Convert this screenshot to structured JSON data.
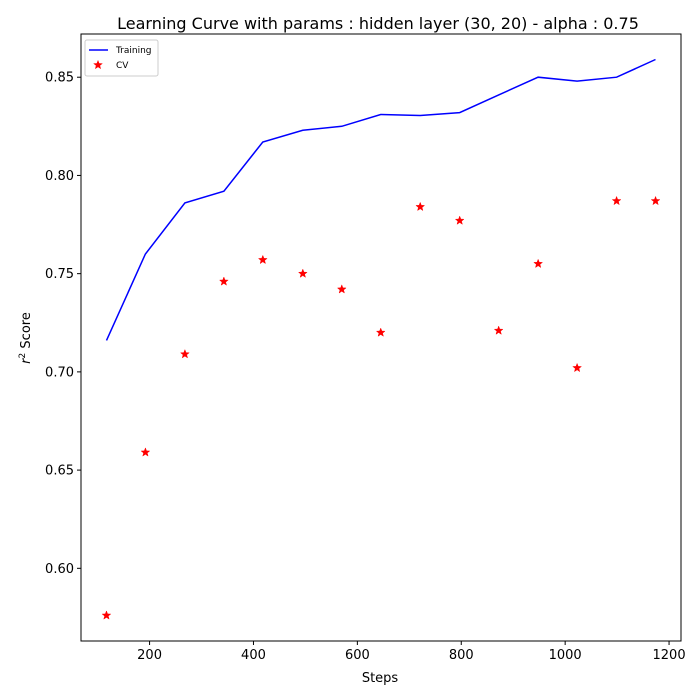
{
  "chart_data": {
    "type": "line",
    "title": "Learning Curve with params : hidden layer (30, 20) - alpha : 0.75",
    "xlabel": "Steps",
    "ylabel_prefix": "r",
    "ylabel_sup": "2",
    "ylabel_suffix": " Score",
    "xlim": [
      68,
      1223
    ],
    "ylim": [
      0.563,
      0.872
    ],
    "xticks": [
      200,
      400,
      600,
      800,
      1000,
      1200
    ],
    "yticks": [
      0.6,
      0.65,
      0.7,
      0.75,
      0.8,
      0.85
    ],
    "xtick_labels": [
      "200",
      "400",
      "600",
      "800",
      "1000",
      "1200"
    ],
    "ytick_labels": [
      "0.60",
      "0.65",
      "0.70",
      "0.75",
      "0.80",
      "0.85"
    ],
    "grid": false,
    "legend_position": "top-left",
    "series": [
      {
        "name": "Training",
        "style": "line",
        "color": "#0000ff",
        "x": [
          117,
          192,
          268,
          343,
          418,
          495,
          570,
          645,
          721,
          797,
          872,
          948,
          1023,
          1099,
          1174
        ],
        "y": [
          0.716,
          0.76,
          0.786,
          0.792,
          0.817,
          0.823,
          0.825,
          0.831,
          0.8305,
          0.832,
          0.841,
          0.85,
          0.848,
          0.85,
          0.859
        ]
      },
      {
        "name": "CV",
        "style": "marker-star",
        "color": "#ff0000",
        "x": [
          117,
          192,
          268,
          343,
          418,
          495,
          570,
          645,
          721,
          797,
          872,
          948,
          1023,
          1099,
          1174
        ],
        "y": [
          0.576,
          0.659,
          0.709,
          0.746,
          0.757,
          0.75,
          0.742,
          0.72,
          0.784,
          0.777,
          0.721,
          0.755,
          0.702,
          0.787,
          0.787
        ]
      }
    ]
  }
}
